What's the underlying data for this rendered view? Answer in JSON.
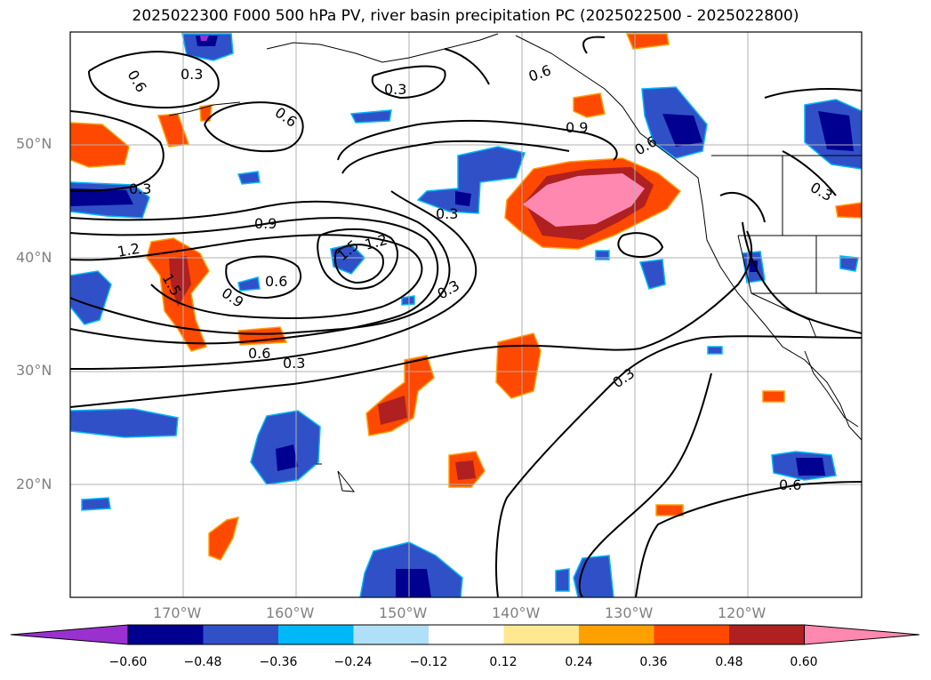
{
  "title": "2025022300 F000 500 hPa PV, river basin precipitation PC (2025022500 - 2025022800)",
  "lat_labels": [
    "50°N",
    "40°N",
    "30°N",
    "20°N"
  ],
  "lon_labels": [
    "170°W",
    "160°W",
    "150°W",
    "140°W",
    "130°W",
    "120°W"
  ],
  "contour_labels": [
    "0.6",
    "0.3",
    "0.3",
    "0.6",
    "0.6",
    "0.9",
    "0.6",
    "0.3",
    "0.3",
    "1.2",
    "0.9",
    "1.5",
    "1.2",
    "0.6",
    "0.9",
    "1.5",
    "0.3",
    "0.6",
    "0.3",
    "0.3",
    "0.3",
    "0.6"
  ],
  "colorbar": {
    "ticks": [
      "−0.60",
      "−0.48",
      "−0.36",
      "−0.24",
      "−0.12",
      "0.12",
      "0.24",
      "0.36",
      "0.48",
      "0.60"
    ],
    "colors": [
      "#9b30d0",
      "#000090",
      "#3050c8",
      "#00b8f8",
      "#b0e0f8",
      "#ffffff",
      "#ffe890",
      "#ffa000",
      "#ff4800",
      "#b02020",
      "#ff88b0"
    ]
  },
  "colors": {
    "coast": "#000000",
    "grid": "#b0b0b0",
    "contour": "#000000"
  }
}
